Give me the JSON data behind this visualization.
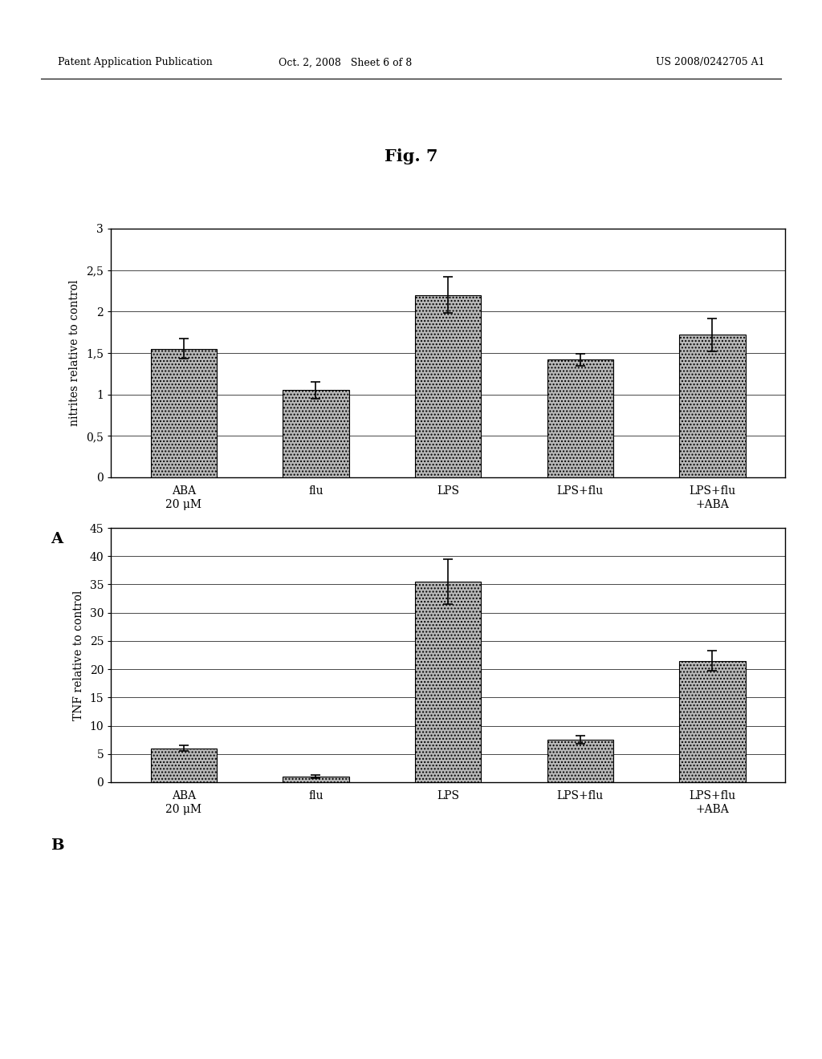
{
  "header_left": "Patent Application Publication",
  "header_mid": "Oct. 2, 2008   Sheet 6 of 8",
  "header_right": "US 2008/0242705 A1",
  "fig_title": "Fig. 7",
  "categories": [
    "ABA\n20 μM",
    "flu",
    "LPS",
    "LPS+flu",
    "LPS+flu\n+ABA"
  ],
  "chart_A": {
    "values": [
      1.55,
      1.05,
      2.2,
      1.42,
      1.72
    ],
    "errors": [
      0.12,
      0.1,
      0.22,
      0.07,
      0.2
    ],
    "ylabel": "nitrites relative to control",
    "ylim": [
      0,
      3
    ],
    "yticks": [
      0,
      0.5,
      1,
      1.5,
      2,
      2.5,
      3
    ],
    "ytick_labels": [
      "0",
      "0,5",
      "1",
      "1,5",
      "2",
      "2,5",
      "3"
    ],
    "label": "A"
  },
  "chart_B": {
    "values": [
      6.0,
      1.0,
      35.5,
      7.5,
      21.5
    ],
    "errors": [
      0.5,
      0.3,
      4.0,
      0.7,
      1.8
    ],
    "ylabel": "TNF relative to control",
    "ylim": [
      0,
      45
    ],
    "yticks": [
      0,
      5,
      10,
      15,
      20,
      25,
      30,
      35,
      40,
      45
    ],
    "ytick_labels": [
      "0",
      "5",
      "10",
      "15",
      "20",
      "25",
      "30",
      "35",
      "40",
      "45"
    ],
    "label": "B"
  },
  "bar_color": "#b8b8b8",
  "bar_hatch": "....",
  "bar_edgecolor": "#000000",
  "background_color": "#ffffff",
  "page_background": "#ffffff",
  "header_fontsize": 9,
  "title_fontsize": 15,
  "axis_fontsize": 10,
  "label_fontsize": 14
}
